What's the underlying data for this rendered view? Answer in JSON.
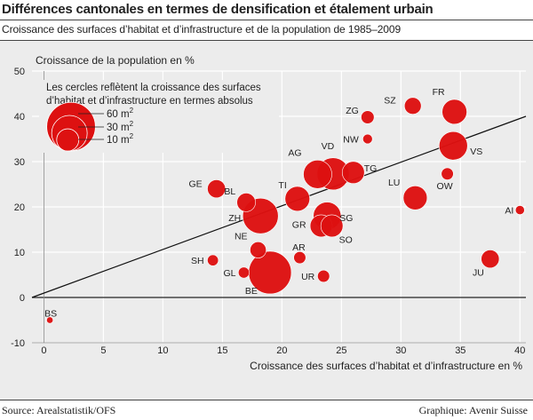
{
  "header": {
    "title": "Différences cantonales en termes de densification et étalement urbain",
    "subtitle": "Croissance des surfaces d’habitat et d’infrastructure et de la population de 1985–2009"
  },
  "footer": {
    "source": "Source: Arealstatistik/OFS",
    "credit": "Graphique: Avenir Suisse"
  },
  "colors": {
    "bubble": "#dd1111",
    "background": "#ececec",
    "grid": "#ffffff",
    "line": "#111111"
  },
  "chart_data": {
    "type": "scatter",
    "ylabel": "Croissance de la population en %",
    "xlabel": "Croissance des surfaces d’habitat et d’infrastructure en %",
    "xlim": [
      -1,
      40.5
    ],
    "ylim": [
      -10,
      50
    ],
    "xticks": [
      0,
      5,
      10,
      15,
      20,
      25,
      30,
      35,
      40
    ],
    "yticks": [
      -10,
      0,
      10,
      20,
      30,
      40,
      50
    ],
    "grid": true,
    "reference_line": {
      "from": [
        -1,
        0
      ],
      "to": [
        40.5,
        40
      ]
    },
    "legend": {
      "text": [
        "Les cercles reflètent la croissance des surfaces",
        "d’habitat et d’infrastructure en termes absolus"
      ],
      "entries": [
        {
          "label": "60 m",
          "unit_sup": "2",
          "size": 60
        },
        {
          "label": "30 m",
          "unit_sup": "2",
          "size": 30
        },
        {
          "label": "10 m",
          "unit_sup": "2",
          "size": 10
        }
      ]
    },
    "points": [
      {
        "label": "BS",
        "x": 0.5,
        "y": -5,
        "size": 0.2
      },
      {
        "label": "SH",
        "x": 14.2,
        "y": 8.2,
        "size": 1.5
      },
      {
        "label": "GL",
        "x": 16.8,
        "y": 5.5,
        "size": 1.5
      },
      {
        "label": "BE",
        "x": 19,
        "y": 5.5,
        "size": 45
      },
      {
        "label": "UR",
        "x": 23.5,
        "y": 4.7,
        "size": 2
      },
      {
        "label": "AR",
        "x": 21.5,
        "y": 8.8,
        "size": 2
      },
      {
        "label": "NE",
        "x": 18,
        "y": 10.5,
        "size": 4.5
      },
      {
        "label": "GE",
        "x": 14.5,
        "y": 24,
        "size": 6
      },
      {
        "label": "BL",
        "x": 17,
        "y": 21,
        "size": 6.5
      },
      {
        "label": "ZH",
        "x": 18.2,
        "y": 18,
        "size": 30
      },
      {
        "label": "TI",
        "x": 21.3,
        "y": 21.8,
        "size": 13
      },
      {
        "label": "GR",
        "x": 23.3,
        "y": 15.8,
        "size": 10
      },
      {
        "label": "SG",
        "x": 23.8,
        "y": 18,
        "size": 17
      },
      {
        "label": "SO",
        "x": 24.2,
        "y": 15.8,
        "size": 10
      },
      {
        "label": "AG",
        "x": 23,
        "y": 27.2,
        "size": 18
      },
      {
        "label": "VD",
        "x": 24.3,
        "y": 27.3,
        "size": 24
      },
      {
        "label": "TG",
        "x": 26,
        "y": 27.6,
        "size": 10
      },
      {
        "label": "ZG",
        "x": 27.2,
        "y": 39.8,
        "size": 2.5
      },
      {
        "label": "NW",
        "x": 27.2,
        "y": 35,
        "size": 1
      },
      {
        "label": "SZ",
        "x": 31,
        "y": 42.3,
        "size": 5
      },
      {
        "label": "FR",
        "x": 34.5,
        "y": 41,
        "size": 13
      },
      {
        "label": "VS",
        "x": 34.4,
        "y": 33.5,
        "size": 18
      },
      {
        "label": "OW",
        "x": 33.9,
        "y": 27.3,
        "size": 2
      },
      {
        "label": "LU",
        "x": 31.2,
        "y": 22,
        "size": 12
      },
      {
        "label": "JU",
        "x": 37.5,
        "y": 8.5,
        "size": 6
      },
      {
        "label": "AI",
        "x": 40,
        "y": 19.3,
        "size": 0.8
      }
    ]
  }
}
